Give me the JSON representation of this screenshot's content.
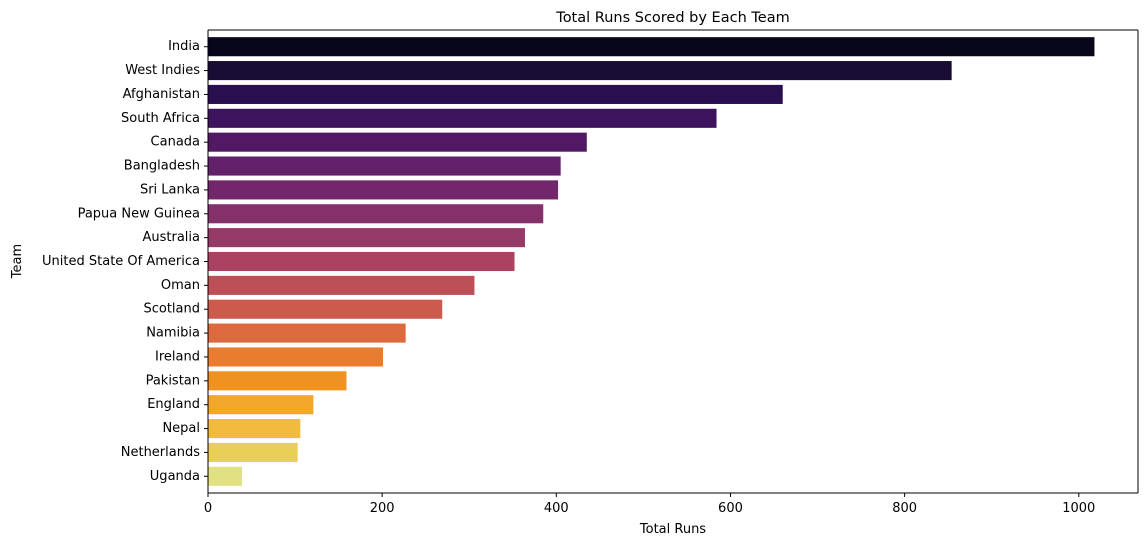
{
  "chart_data": {
    "type": "bar",
    "orientation": "horizontal",
    "title": "Total Runs Scored by Each Team",
    "xlabel": "Total Runs",
    "ylabel": "Team",
    "xlim": [
      0,
      1068
    ],
    "xticks": [
      0,
      200,
      400,
      600,
      800,
      1000
    ],
    "grid": false,
    "categories": [
      "India",
      "West Indies",
      "Afghanistan",
      "South Africa",
      "Canada",
      "Bangladesh",
      "Sri Lanka",
      "Papua New Guinea",
      "Australia",
      "United State Of America",
      "Oman",
      "Scotland",
      "Namibia",
      "Ireland",
      "Pakistan",
      "England",
      "Nepal",
      "Netherlands",
      "Uganda"
    ],
    "values": [
      1018,
      854,
      660,
      584,
      435,
      405,
      402,
      385,
      364,
      352,
      306,
      269,
      227,
      201,
      159,
      121,
      106,
      103,
      39
    ],
    "colors": [
      "#07061b",
      "#170d34",
      "#2a0f50",
      "#3e135d",
      "#511964",
      "#62216a",
      "#72276a",
      "#84306a",
      "#973967",
      "#a94361",
      "#bc4f58",
      "#cd5b4d",
      "#dc6a3e",
      "#e97c2e",
      "#ef921f",
      "#f2a62a",
      "#f1bb3e",
      "#e8cf57",
      "#e1e182"
    ]
  }
}
